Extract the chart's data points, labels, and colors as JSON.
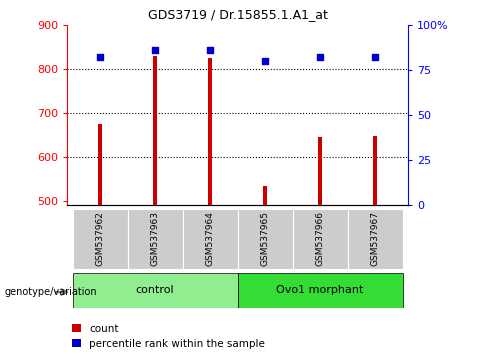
{
  "title": "GDS3719 / Dr.15855.1.A1_at",
  "categories": [
    "GSM537962",
    "GSM537963",
    "GSM537964",
    "GSM537965",
    "GSM537966",
    "GSM537967"
  ],
  "count_values": [
    675,
    830,
    825,
    535,
    645,
    648
  ],
  "percentile_values": [
    82,
    86,
    86,
    80,
    82,
    82
  ],
  "ylim_left": [
    490,
    900
  ],
  "ylim_right": [
    0,
    100
  ],
  "yticks_left": [
    500,
    600,
    700,
    800,
    900
  ],
  "yticks_right": [
    0,
    25,
    50,
    75,
    100
  ],
  "grid_values": [
    600,
    700,
    800
  ],
  "bar_color": "#cc0000",
  "dot_color": "#0000cc",
  "control_color": "#90ee90",
  "morphant_color": "#33dd33",
  "sample_bg_color": "#cccccc",
  "legend_count_label": "count",
  "legend_percentile_label": "percentile rank within the sample",
  "genotype_label": "genotype/variation",
  "control_label": "control",
  "morphant_label": "Ovo1 morphant",
  "baseline": 490,
  "bar_width": 0.07
}
